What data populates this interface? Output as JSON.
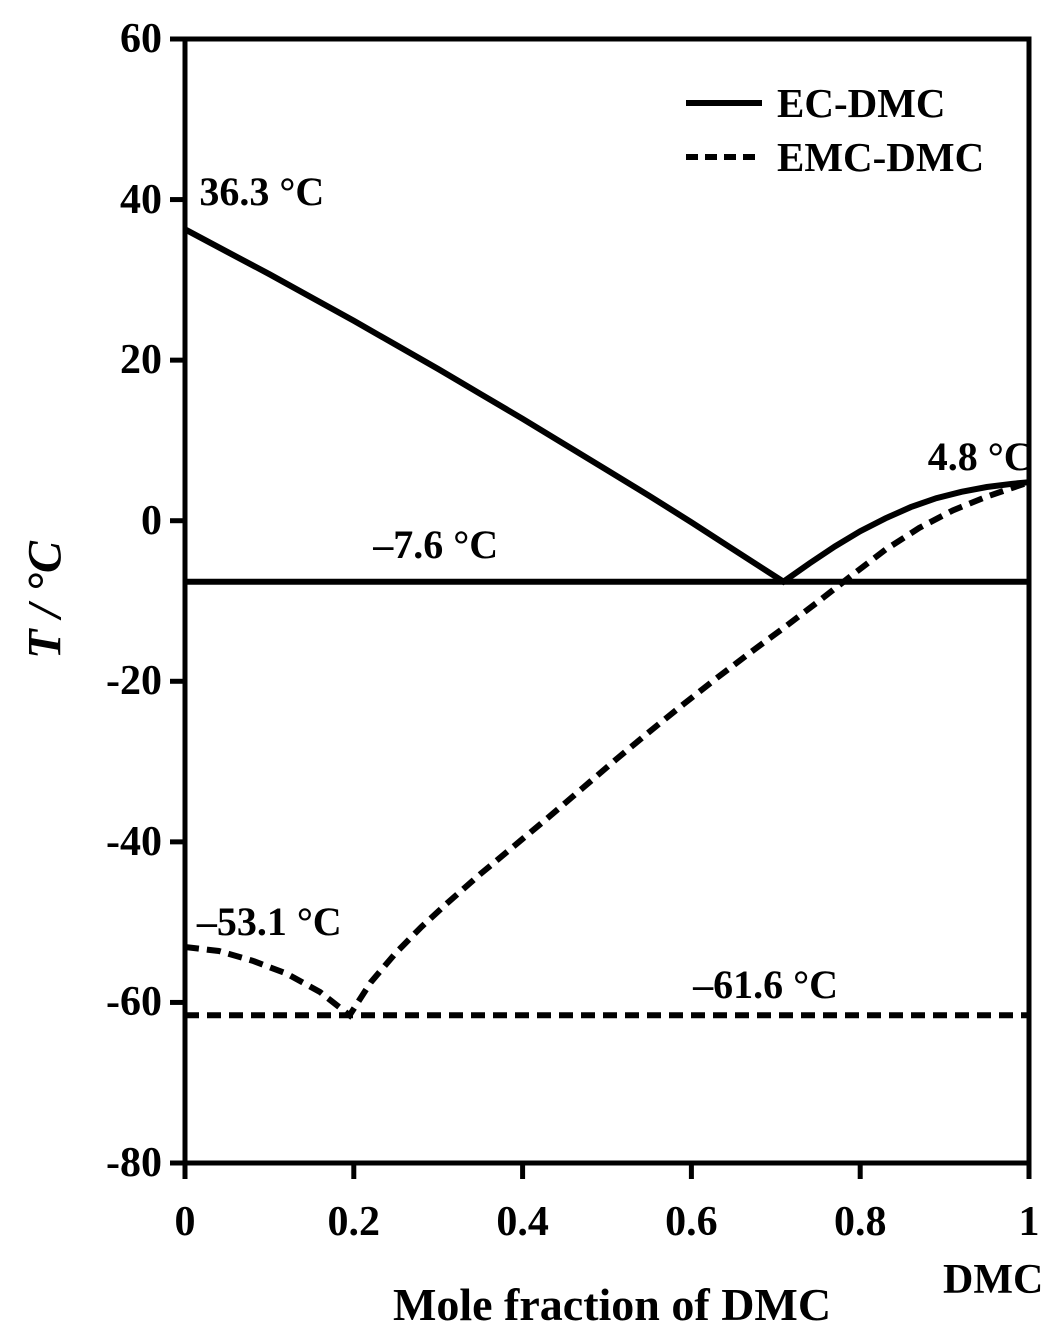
{
  "figure": {
    "background": "#ffffff",
    "ink": "#000000"
  },
  "chart_data": {
    "type": "line",
    "title": "",
    "xlabel": "Mole fraction of DMC",
    "xlabel_right": "DMC",
    "ylabel": "T / °C",
    "xlim": [
      0,
      1
    ],
    "ylim": [
      -80,
      60
    ],
    "grid": false,
    "x_ticks": [
      {
        "value": 0,
        "label": "0"
      },
      {
        "value": 0.2,
        "label": "0.2"
      },
      {
        "value": 0.4,
        "label": "0.4"
      },
      {
        "value": 0.6,
        "label": "0.6"
      },
      {
        "value": 0.8,
        "label": "0.8"
      },
      {
        "value": 1,
        "label": "1"
      }
    ],
    "y_ticks": [
      {
        "value": 60,
        "label": "60"
      },
      {
        "value": 40,
        "label": "40"
      },
      {
        "value": 20,
        "label": "20"
      },
      {
        "value": 0,
        "label": "0"
      },
      {
        "value": -20,
        "label": "-20"
      },
      {
        "value": -40,
        "label": "-40"
      },
      {
        "value": -60,
        "label": "-60"
      },
      {
        "value": -80,
        "label": "-80"
      }
    ],
    "legend": {
      "position": "top-right",
      "entries": [
        {
          "label": "EC-DMC",
          "style": "solid"
        },
        {
          "label": "EMC-DMC",
          "style": "dashed"
        }
      ]
    },
    "series": [
      {
        "name": "EC-DMC eutectic temperature line",
        "style": "solid",
        "points": [
          [
            0,
            -7.6
          ],
          [
            1,
            -7.6
          ]
        ]
      },
      {
        "name": "EMC-DMC eutectic temperature line",
        "style": "dashed",
        "points": [
          [
            0,
            -61.6
          ],
          [
            1,
            -61.6
          ]
        ]
      },
      {
        "name": "EC-DMC liquidus",
        "style": "solid",
        "points": [
          [
            0,
            36.3
          ],
          [
            0.05,
            33.5
          ],
          [
            0.1,
            30.7
          ],
          [
            0.15,
            27.8
          ],
          [
            0.2,
            24.9
          ],
          [
            0.25,
            21.9
          ],
          [
            0.3,
            18.9
          ],
          [
            0.35,
            15.8
          ],
          [
            0.4,
            12.7
          ],
          [
            0.45,
            9.5
          ],
          [
            0.5,
            6.3
          ],
          [
            0.55,
            3.1
          ],
          [
            0.6,
            -0.2
          ],
          [
            0.65,
            -3.6
          ],
          [
            0.709,
            -7.6
          ],
          [
            0.74,
            -5.3
          ],
          [
            0.77,
            -3.2
          ],
          [
            0.8,
            -1.3
          ],
          [
            0.83,
            0.3
          ],
          [
            0.86,
            1.7
          ],
          [
            0.89,
            2.8
          ],
          [
            0.92,
            3.6
          ],
          [
            0.95,
            4.2
          ],
          [
            0.98,
            4.6
          ],
          [
            1,
            4.8
          ]
        ]
      },
      {
        "name": "EMC-DMC liquidus",
        "style": "dashed",
        "points": [
          [
            0,
            -53.1
          ],
          [
            0.04,
            -53.6
          ],
          [
            0.08,
            -54.8
          ],
          [
            0.12,
            -56.4
          ],
          [
            0.16,
            -58.7
          ],
          [
            0.195,
            -61.6
          ],
          [
            0.22,
            -57.5
          ],
          [
            0.25,
            -53.8
          ],
          [
            0.28,
            -50.6
          ],
          [
            0.31,
            -47.7
          ],
          [
            0.35,
            -44.0
          ],
          [
            0.39,
            -40.5
          ],
          [
            0.43,
            -37.0
          ],
          [
            0.47,
            -33.4
          ],
          [
            0.51,
            -29.8
          ],
          [
            0.55,
            -26.3
          ],
          [
            0.59,
            -22.9
          ],
          [
            0.63,
            -19.6
          ],
          [
            0.67,
            -16.4
          ],
          [
            0.71,
            -13.3
          ],
          [
            0.75,
            -10.1
          ],
          [
            0.79,
            -6.8
          ],
          [
            0.83,
            -3.6
          ],
          [
            0.87,
            -0.9
          ],
          [
            0.91,
            1.3
          ],
          [
            0.95,
            3.0
          ],
          [
            1,
            4.8
          ]
        ]
      }
    ],
    "annotations": [
      {
        "text": "36.3 °C",
        "x": 0.017,
        "T": 40.9
      },
      {
        "text": "4.8 °C",
        "x": 0.88,
        "T": 7.9
      },
      {
        "text": "–7.6 °C",
        "x": 0.223,
        "T": -3.0
      },
      {
        "text": "–53.1 °C",
        "x": 0.014,
        "T": -50.0
      },
      {
        "text": "–61.6 °C",
        "x": 0.602,
        "T": -57.8
      }
    ],
    "key_points": {
      "EC_DMC": {
        "pure_EC_melting_C": 36.3,
        "eutectic_x_DMC": 0.71,
        "eutectic_T_C": -7.6,
        "pure_DMC_melting_C": 4.8
      },
      "EMC_DMC": {
        "pure_EMC_melting_C": -53.1,
        "eutectic_x_DMC": 0.195,
        "eutectic_T_C": -61.6,
        "pure_DMC_melting_C": 4.8
      }
    }
  }
}
